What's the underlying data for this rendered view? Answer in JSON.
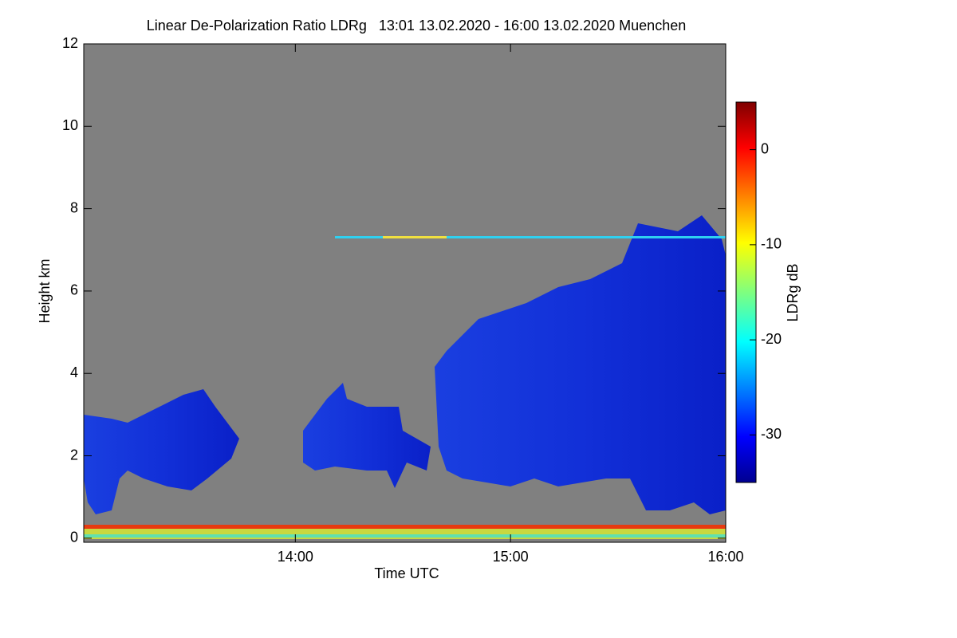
{
  "chart_data": {
    "type": "heatmap",
    "title": "Linear De-Polarization Ratio LDRg   13:01 13.02.2020 - 16:00 13.02.2020 Muenchen",
    "x_label": "Time UTC",
    "y_label": "Height km",
    "xlim": [
      13.0167,
      16.0
    ],
    "xticks": [
      {
        "value": 14,
        "label": "14:00"
      },
      {
        "value": 15,
        "label": "15:00"
      },
      {
        "value": 16,
        "label": "16:00"
      }
    ],
    "ylim": [
      -0.1,
      12
    ],
    "yticks": [
      0,
      2,
      4,
      6,
      8,
      10,
      12
    ],
    "colorbar": {
      "label": "LDRg dB",
      "clim": [
        -35,
        5
      ],
      "ticks": [
        0,
        -10,
        -20,
        -30
      ]
    }
  }
}
